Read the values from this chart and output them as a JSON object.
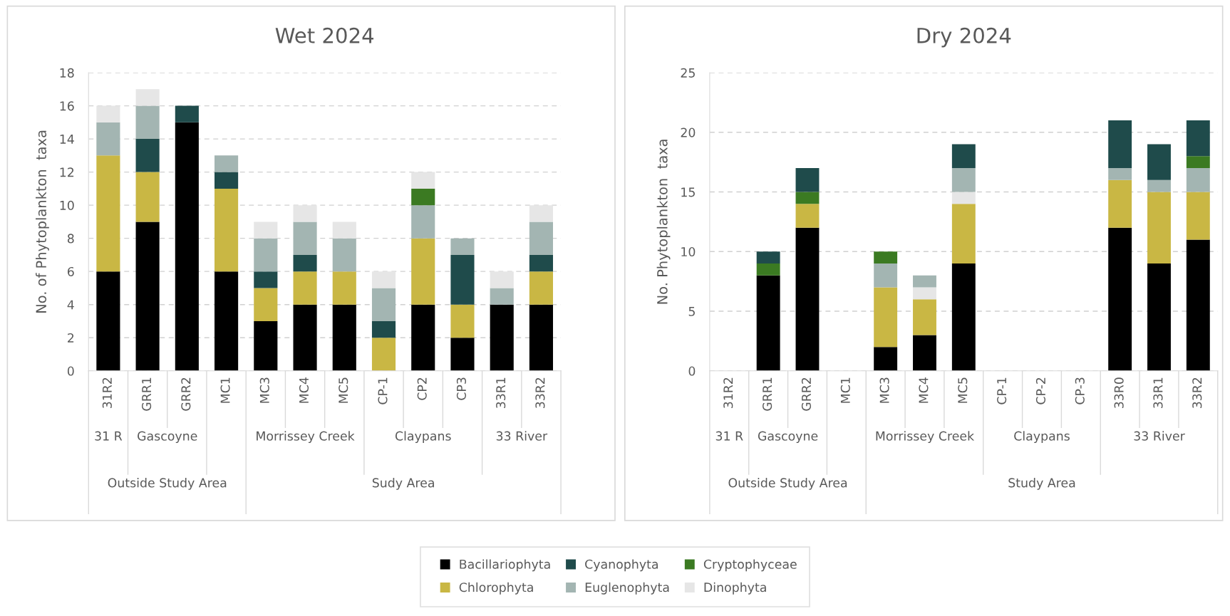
{
  "chart_data": [
    {
      "type": "bar",
      "title": "Wet 2024",
      "ylabel": "No. of Phytoplankton  taxa",
      "stacked": true,
      "legend": "bottom",
      "grid": "y",
      "categories": [
        "31R2",
        "GRR1",
        "GRR2",
        "MC1",
        "MC3",
        "MC4",
        "MC5",
        "CP-1",
        "CP2",
        "CP3",
        "33R1",
        "33R2"
      ],
      "ylim": [
        0,
        18
      ],
      "yticks": [
        0,
        2,
        4,
        6,
        8,
        10,
        12,
        14,
        16,
        18
      ],
      "annotations": [
        "31 R",
        "Gascoyne",
        "Morrissey Creek",
        "Claypans",
        "33 River",
        "Outside Study Area",
        "Sudy Area"
      ],
      "series": [
        {
          "name": "Bacillariophyta",
          "color": "#000000",
          "values": [
            6,
            9,
            15,
            6,
            3,
            4,
            4,
            0,
            4,
            2,
            4,
            4
          ]
        },
        {
          "name": "Chlorophyta",
          "color": "#c9b744",
          "values": [
            7,
            3,
            0,
            5,
            2,
            2,
            2,
            2,
            4,
            2,
            0,
            2
          ]
        },
        {
          "name": "Cyanophyta",
          "color": "#1f4b4b",
          "values": [
            0,
            2,
            1,
            1,
            1,
            1,
            0,
            1,
            0,
            3,
            0,
            1
          ]
        },
        {
          "name": "Euglenophyta",
          "color": "#a3b5b2",
          "values": [
            2,
            2,
            0,
            1,
            2,
            2,
            2,
            2,
            2,
            1,
            1,
            2
          ]
        },
        {
          "name": "Cryptophyceae",
          "color": "#3b7a22",
          "values": [
            0,
            0,
            0,
            0,
            0,
            0,
            0,
            0,
            1,
            0,
            0,
            0
          ]
        },
        {
          "name": "Dinophyta",
          "color": "#e6e6e6",
          "values": [
            1,
            1,
            0,
            0,
            1,
            1,
            1,
            1,
            1,
            0,
            1,
            1
          ]
        }
      ]
    },
    {
      "type": "bar",
      "title": "Dry 2024",
      "ylabel": "No. Phytoplankton  taxa",
      "stacked": true,
      "grid": "y",
      "categories": [
        "31R2",
        "GRR1",
        "GRR2",
        "MC1",
        "MC3",
        "MC4",
        "MC5",
        "CP-1",
        "CP-2",
        "CP-3",
        "33R0",
        "33R1",
        "33R2"
      ],
      "ylim": [
        0,
        25
      ],
      "yticks": [
        0,
        5,
        10,
        15,
        20,
        25
      ],
      "annotations": [
        "31 R",
        "Gascoyne",
        "Morrissey Creek",
        "Claypans",
        "33 River",
        "Outside Study Area",
        "Study Area"
      ],
      "series": [
        {
          "color": "#000000",
          "values": [
            0,
            8,
            12,
            0,
            2,
            3,
            9,
            0,
            0,
            0,
            12,
            9,
            11
          ]
        },
        {
          "color": "#c9b744",
          "values": [
            0,
            0,
            2,
            0,
            5,
            3,
            5,
            0,
            0,
            0,
            4,
            6,
            4
          ]
        },
        {
          "color": "#e6e6e6",
          "values": [
            0,
            0,
            0,
            0,
            0,
            1,
            1,
            0,
            0,
            0,
            0,
            0,
            0
          ]
        },
        {
          "color": "#a3b5b2",
          "values": [
            0,
            0,
            0,
            0,
            2,
            1,
            2,
            0,
            0,
            0,
            1,
            1,
            2
          ]
        },
        {
          "color": "#3b7a22",
          "values": [
            0,
            1,
            1,
            0,
            1,
            0,
            0,
            0,
            0,
            0,
            0,
            0,
            1
          ]
        },
        {
          "color": "#1f4b4b",
          "values": [
            0,
            1,
            2,
            0,
            0,
            0,
            2,
            0,
            0,
            0,
            4,
            3,
            3
          ]
        }
      ]
    }
  ]
}
